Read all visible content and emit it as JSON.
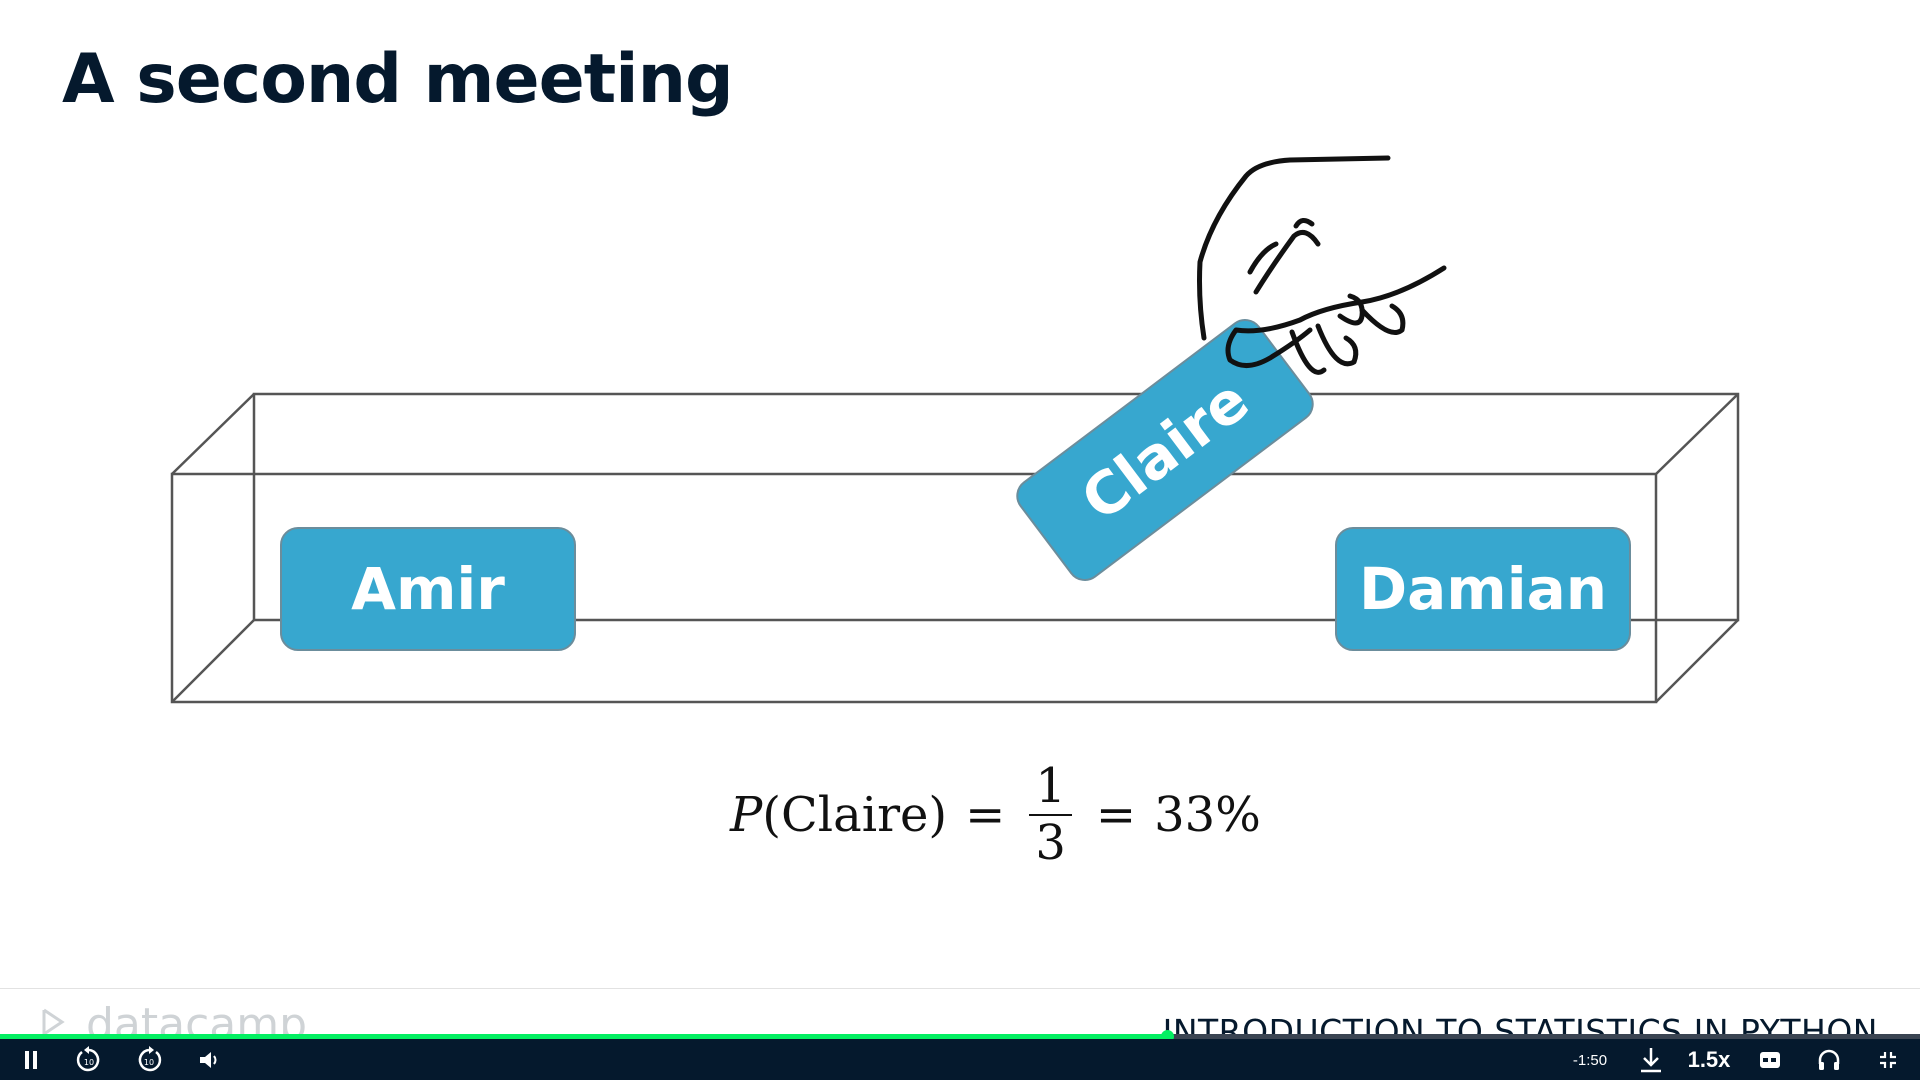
{
  "slide": {
    "title": "A second meeting",
    "cards": {
      "left": "Amir",
      "drawn": "Claire",
      "right": "Damian"
    },
    "formula": {
      "lhs_fn": "P",
      "lhs_arg": "(Claire)",
      "eq": "=",
      "numerator": "1",
      "denominator": "3",
      "result": "33%"
    }
  },
  "footer": {
    "brand": "datacamp",
    "course": "INTRODUCTION TO STATISTICS IN PYTHON"
  },
  "player": {
    "progress": 0.608,
    "time_remaining": "-1:50",
    "speed": "1.5x",
    "rewind_seconds": "10",
    "forward_seconds": "10",
    "colors": {
      "progress": "#03ef62",
      "bar": "#05192d"
    },
    "icons": [
      "pause-icon",
      "rewind-10-icon",
      "forward-10-icon",
      "volume-icon",
      "download-icon",
      "captions-icon",
      "headphones-icon",
      "exit-fullscreen-icon"
    ]
  }
}
